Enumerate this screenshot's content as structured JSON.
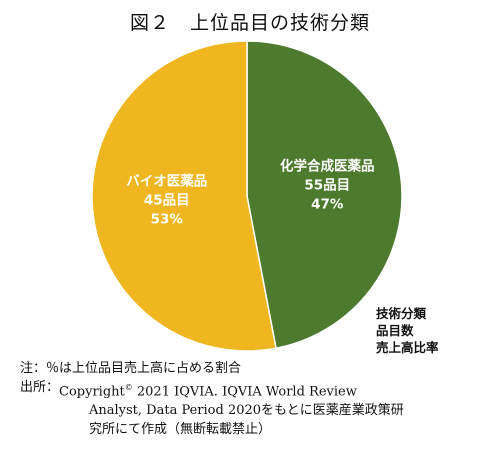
{
  "title": "図２　上位品目の技術分類",
  "colors": {
    "chemical": "#4e7a2e",
    "bio": "#f0b620",
    "label_text": "#ffffff"
  },
  "chart_data": {
    "type": "pie",
    "title": "図２　上位品目の技術分類",
    "slices": [
      {
        "label": "化学合成医薬品",
        "count_label": "55品目",
        "pct_label": "47%",
        "value": 47
      },
      {
        "label": "バイオ医薬品",
        "count_label": "45品目",
        "pct_label": "53%",
        "value": 53
      }
    ],
    "legend_lines": [
      "技術分類",
      "品目数",
      "売上高比率"
    ]
  },
  "footnotes": {
    "note": "注：％は上位品目売上高に占める割合",
    "source_lead": "出所：",
    "source_part1": "Copyright",
    "source_sup": "©",
    "source_part2": " 2021 IQVIA. IQVIA World Review",
    "source_line2": "Analyst, Data Period 2020をもとに医薬産業政策研",
    "source_line3": "究所にて作成（無断転載禁止）"
  }
}
